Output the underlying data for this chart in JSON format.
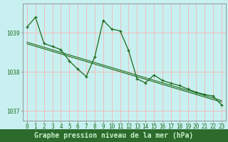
{
  "title": "Graphe pression niveau de la mer (hPa)",
  "bg_color": "#c8f0f0",
  "grid_color": "#ffaaaa",
  "line_color": "#1a6b1a",
  "marker_color": "#1a6b1a",
  "bottom_bar_color": "#2d6b2d",
  "bottom_text_color": "#c8f0c8",
  "x_values": [
    0,
    1,
    2,
    3,
    4,
    5,
    6,
    7,
    8,
    9,
    10,
    11,
    12,
    13,
    14,
    15,
    16,
    17,
    18,
    19,
    20,
    21,
    22,
    23
  ],
  "y_main": [
    1039.15,
    1039.4,
    1038.73,
    1038.65,
    1038.57,
    1038.28,
    1038.07,
    1037.88,
    1038.38,
    1039.32,
    1039.1,
    1039.05,
    1038.55,
    1037.82,
    1037.72,
    1037.92,
    1037.78,
    1037.71,
    1037.65,
    1037.56,
    1037.48,
    1037.42,
    1037.38,
    1037.15
  ],
  "y_trend1": [
    1038.72,
    1038.655,
    1038.59,
    1038.525,
    1038.46,
    1038.395,
    1038.33,
    1038.265,
    1038.2,
    1038.135,
    1038.07,
    1038.005,
    1037.94,
    1037.875,
    1037.81,
    1037.745,
    1037.68,
    1037.615,
    1037.55,
    1037.485,
    1037.42,
    1037.355,
    1037.29,
    1037.225
  ],
  "y_trend2": [
    1038.76,
    1038.695,
    1038.63,
    1038.565,
    1038.5,
    1038.435,
    1038.37,
    1038.305,
    1038.24,
    1038.175,
    1038.11,
    1038.045,
    1037.98,
    1037.915,
    1037.85,
    1037.785,
    1037.72,
    1037.655,
    1037.59,
    1037.525,
    1037.46,
    1037.395,
    1037.33,
    1037.265
  ],
  "ylim_min": 1036.75,
  "ylim_max": 1039.75,
  "yticks": [
    1037,
    1038,
    1039
  ],
  "xticks": [
    0,
    1,
    2,
    3,
    4,
    5,
    6,
    7,
    8,
    9,
    10,
    11,
    12,
    13,
    14,
    15,
    16,
    17,
    18,
    19,
    20,
    21,
    22,
    23
  ],
  "tick_fontsize": 5.5,
  "title_fontsize": 7.0,
  "axis_color": "#888888"
}
